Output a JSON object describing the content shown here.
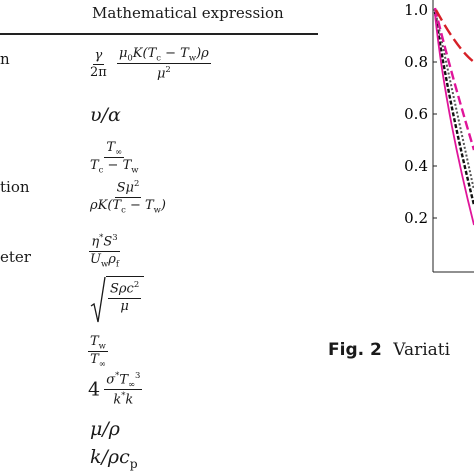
{
  "table": {
    "header": "Mathematical expression",
    "row_labels": [
      "n",
      "tion",
      "eter"
    ]
  },
  "figure": {
    "caption_label": "Fig. 2",
    "caption_text": "Variati",
    "y_ticks": [
      "1.0",
      "0.8",
      "0.6",
      "0.4",
      "0.2"
    ],
    "colors": {
      "magenta": "#e0159a",
      "red": "#d62027",
      "black": "#111111"
    }
  }
}
